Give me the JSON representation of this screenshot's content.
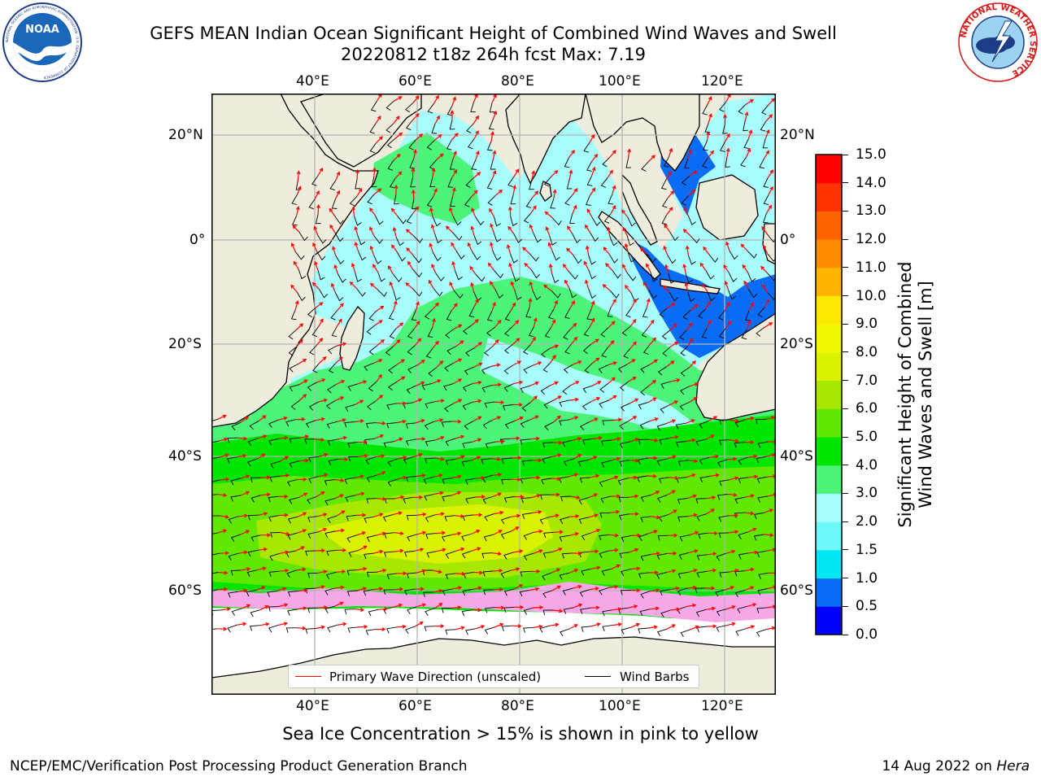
{
  "title_line1": "GEFS MEAN Indian Ocean Significant Height of Combined Wind Waves and Swell",
  "title_line2": "20220812 t18z 264h fcst   Max: 7.19",
  "map": {
    "lon_labels": [
      "40°E",
      "60°E",
      "80°E",
      "100°E",
      "120°E"
    ],
    "lat_labels": [
      "20°N",
      "0°",
      "20°S",
      "40°S",
      "60°S"
    ],
    "land_color": "#eeecdc",
    "grid_color": "#b4b4b4"
  },
  "colorbar": {
    "label_line1": "Significant Height of Combined",
    "label_line2": "Wind Waves and Swell [m]",
    "ticks": [
      "0.0",
      "0.5",
      "1.0",
      "1.5",
      "2.0",
      "3.0",
      "4.0",
      "5.0",
      "6.0",
      "7.0",
      "8.0",
      "9.0",
      "10.0",
      "11.0",
      "12.0",
      "13.0",
      "14.0",
      "15.0"
    ],
    "colors": [
      "#0000ff",
      "#0a6cf5",
      "#00e6f5",
      "#6cf8f8",
      "#a8fcfc",
      "#4cf57a",
      "#00e600",
      "#60e800",
      "#a8e800",
      "#d8f200",
      "#f0f800",
      "#ffe800",
      "#ffb400",
      "#ff8c00",
      "#ff6400",
      "#ff3200",
      "#ff0000"
    ]
  },
  "legend": {
    "wave_direction": "Primary Wave Direction (unscaled)",
    "wind_barbs": "Wind Barbs",
    "wave_color": "#ff0000",
    "barb_color": "#000000"
  },
  "sea_ice_note": "Sea Ice Concentration > 15% is shown in pink to yellow",
  "footer_left": "NCEP/EMC/Verification Post Processing Product Generation Branch",
  "footer_right_date": "14 Aug 2022 on ",
  "footer_right_host": "Hera",
  "logos": {
    "noaa_text": "NOAA",
    "noaa_ring": "NATIONAL OCEANIC AND ATMOSPHERIC ADMINISTRATION · U.S. DEPARTMENT OF COMMERCE",
    "nws_ring": "NATIONAL WEATHER SERVICE"
  }
}
